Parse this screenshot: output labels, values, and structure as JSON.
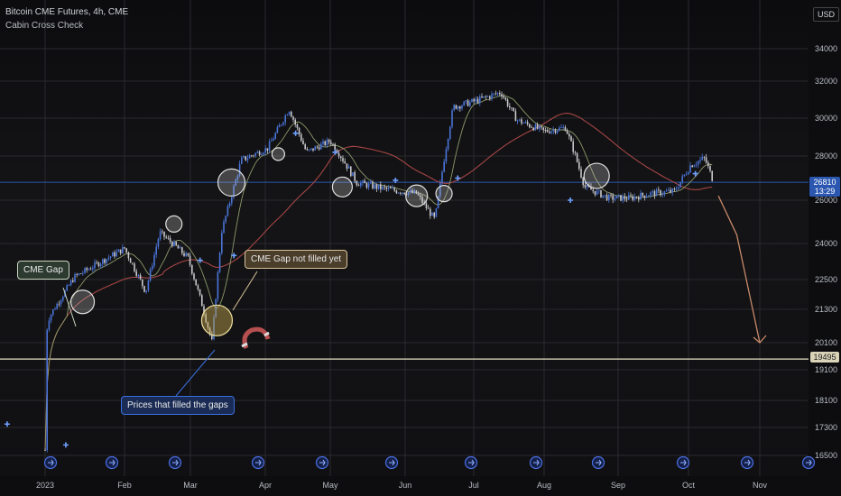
{
  "header": {
    "symbol_line": "Bitcoin CME Futures, 4h, CME",
    "indicator": "Cabin Cross Check",
    "currency": "USD"
  },
  "chart_data": {
    "type": "candlestick",
    "ylim": [
      15800,
      35000
    ],
    "y_ticks": [
      "34000",
      "32000",
      "30000",
      "28000",
      "26000",
      "24000",
      "22500",
      "21300",
      "20100",
      "19100",
      "18100",
      "17300",
      "16500"
    ],
    "x_ticks": [
      "2023",
      "Feb",
      "Mar",
      "Apr",
      "May",
      "Jun",
      "Jul",
      "Aug",
      "Sep",
      "Oct",
      "Nov"
    ],
    "last_price": "26810",
    "countdown": "13:29",
    "horizontal_level": "19495",
    "close_path": [
      [
        "2023",
        16650
      ],
      [
        "Jan 10",
        17800
      ],
      [
        "Jan 14",
        21000
      ],
      [
        "Jan 20",
        22600
      ],
      [
        "Feb 1",
        23800
      ],
      [
        "Feb 10",
        22000
      ],
      [
        "Feb 16",
        24500
      ],
      [
        "Feb 28",
        23400
      ],
      [
        "Mar 10",
        20100
      ],
      [
        "Mar 14",
        24600
      ],
      [
        "Mar 22",
        27800
      ],
      [
        "Apr 2",
        28400
      ],
      [
        "Apr 12",
        30500
      ],
      [
        "Apr 20",
        28200
      ],
      [
        "May 1",
        28800
      ],
      [
        "May 12",
        26800
      ],
      [
        "May 24",
        26500
      ],
      [
        "Jun 6",
        26300
      ],
      [
        "Jun 14",
        25100
      ],
      [
        "Jun 22",
        30600
      ],
      [
        "Jul 1",
        30900
      ],
      [
        "Jul 13",
        31400
      ],
      [
        "Jul 20",
        29900
      ],
      [
        "Aug 1",
        29300
      ],
      [
        "Aug 10",
        29500
      ],
      [
        "Aug 18",
        26600
      ],
      [
        "Aug 28",
        26100
      ],
      [
        "Sep 6",
        26100
      ],
      [
        "Sep 15",
        26300
      ],
      [
        "Sep 25",
        26400
      ],
      [
        "Oct 2",
        27600
      ],
      [
        "Oct 8",
        27900
      ],
      [
        "Oct 12",
        26810
      ]
    ],
    "projection": [
      [
        "Oct 14",
        26200
      ],
      [
        "Oct 22",
        24400
      ],
      [
        "Nov 1",
        20100
      ]
    ]
  },
  "annotations": {
    "cme_gap": "CME Gap",
    "gap_not_filled": "CME Gap not filled yet",
    "prices_filled": "Prices that filled the gaps"
  },
  "colors": {
    "up": "#4a74d8",
    "down": "#c8c8cc",
    "ma_red": "#a64545",
    "ma_green": "#8c9a6a",
    "last_price_bg": "#2b57b0",
    "grid": "#2a2a30"
  }
}
